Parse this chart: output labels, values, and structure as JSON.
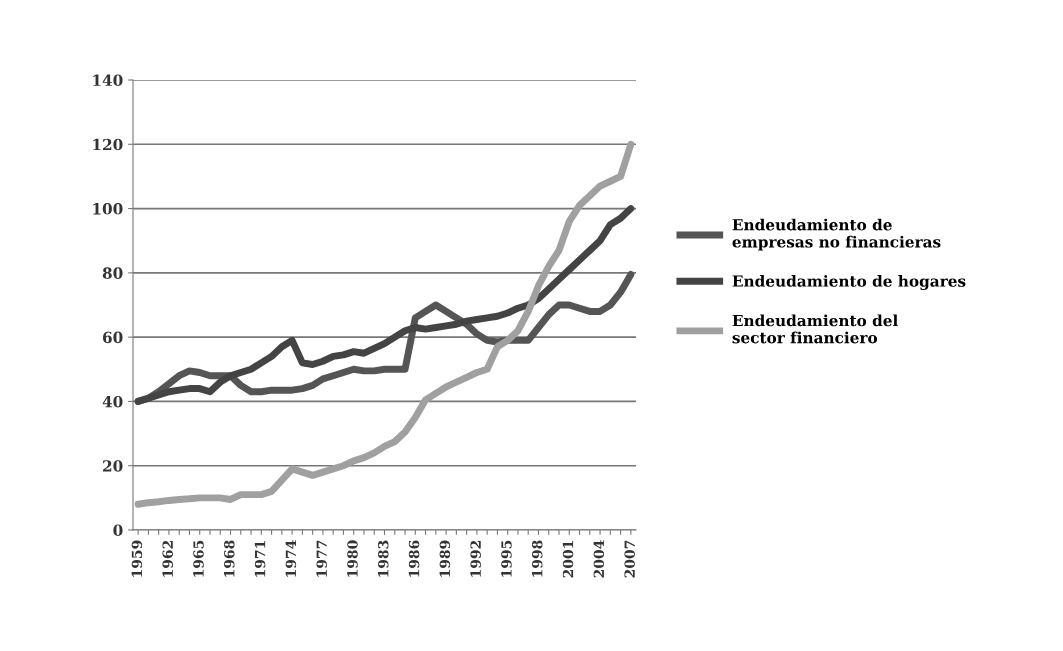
{
  "chart_data": {
    "type": "line",
    "categories": [
      "1959",
      null,
      null,
      "1962",
      null,
      null,
      "1965",
      null,
      null,
      "1968",
      null,
      null,
      "1971",
      null,
      null,
      "1974",
      null,
      null,
      "1977",
      null,
      null,
      "1980",
      null,
      null,
      "1983",
      null,
      null,
      "1986",
      null,
      null,
      "1989",
      null,
      null,
      "1992",
      null,
      null,
      "1995",
      null,
      null,
      "1998",
      null,
      null,
      "2001",
      null,
      null,
      "2004",
      null,
      null,
      "2007"
    ],
    "series": [
      {
        "name": "Endeudamiento de empresas no financieras",
        "color": "#555555",
        "values": [
          40,
          41,
          43,
          45.5,
          48,
          49.5,
          49,
          48,
          48,
          48,
          45,
          43,
          43,
          43.5,
          43.5,
          43.5,
          44,
          45,
          47,
          48,
          49,
          50,
          49.5,
          49.5,
          50,
          50,
          50,
          66,
          68,
          70,
          68,
          66,
          64,
          61,
          59,
          58.5,
          59,
          59,
          59,
          63,
          67,
          70,
          70,
          69,
          68,
          68,
          70,
          74,
          79.5
        ]
      },
      {
        "name": "Endeudamiento de hogares",
        "color": "#444444",
        "values": [
          40,
          41,
          42,
          43,
          43.5,
          44,
          44,
          43,
          46,
          48,
          49,
          50,
          52,
          54,
          57,
          59,
          52,
          51.5,
          52.5,
          54,
          54.5,
          55.5,
          55,
          56.5,
          58,
          60,
          62,
          63,
          62.5,
          63,
          63.5,
          64,
          65,
          65.5,
          66,
          66.5,
          67.5,
          69,
          70,
          72,
          75,
          78,
          81,
          84,
          87,
          90,
          95,
          97,
          100
        ]
      },
      {
        "name": "Endeudamiento del sector financiero",
        "color": "#a0a0a0",
        "values": [
          8,
          8.5,
          8.8,
          9.2,
          9.5,
          9.7,
          10,
          10,
          10,
          9.5,
          11,
          11,
          11,
          12,
          15.5,
          19,
          18,
          17,
          18,
          19,
          20,
          21.5,
          22.5,
          24,
          26,
          27.5,
          30.5,
          35,
          40.5,
          42.5,
          44.5,
          46,
          47.5,
          49,
          50,
          57,
          59,
          62,
          68,
          76,
          82,
          87,
          96,
          101,
          104,
          107,
          108.5,
          110,
          120
        ]
      }
    ],
    "ylim": [
      0,
      140
    ],
    "yticks": [
      0,
      20,
      40,
      60,
      80,
      100,
      120,
      140
    ],
    "grid": "y",
    "legend": "right",
    "line_style": "solid",
    "marker": "none"
  }
}
